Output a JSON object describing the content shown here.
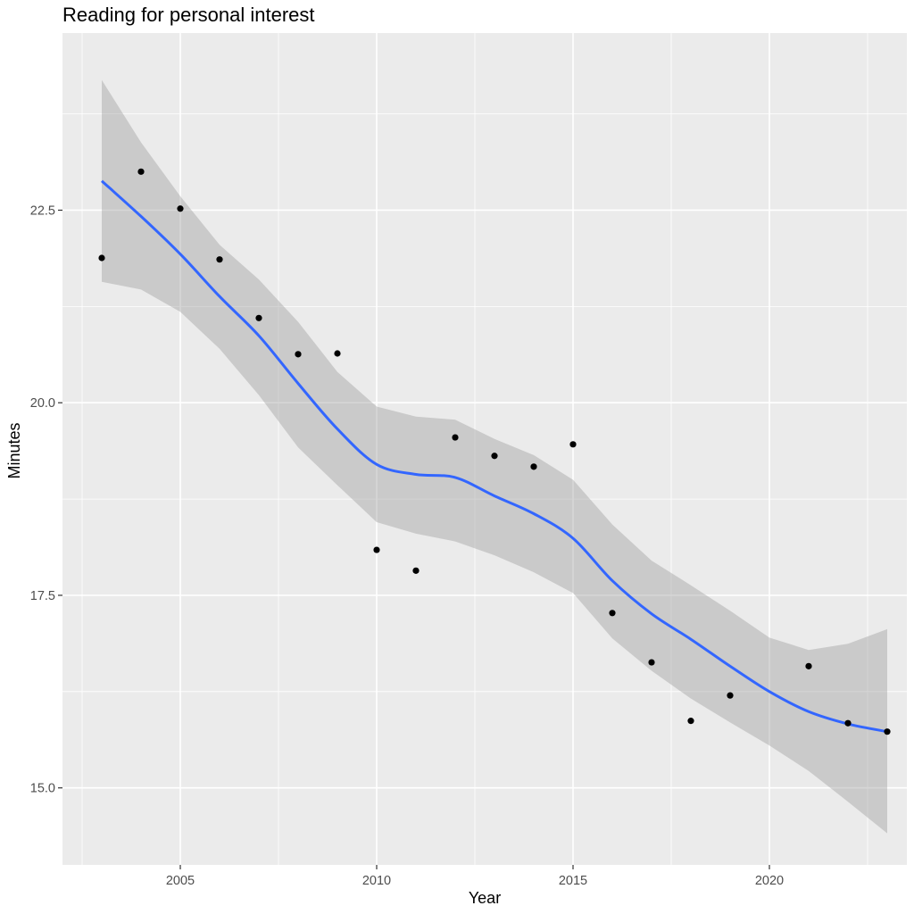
{
  "chart_data": {
    "type": "scatter",
    "title": "Reading for personal interest",
    "xlabel": "Year",
    "ylabel": "Minutes",
    "xlim": [
      2002.0,
      2023.5
    ],
    "ylim": [
      14.0,
      24.8
    ],
    "x_ticks": [
      2005,
      2010,
      2015,
      2020
    ],
    "y_ticks": [
      15.0,
      17.5,
      20.0,
      22.5
    ],
    "x_tick_labels": [
      "2005",
      "2010",
      "2015",
      "2020"
    ],
    "y_tick_labels": [
      "15.0",
      "17.5",
      "20.0",
      "22.5"
    ],
    "grid": true,
    "legend": "none",
    "colors": {
      "panel": "#ebebeb",
      "grid": "#ffffff",
      "points": "#000000",
      "smooth_line": "#3366ff",
      "ribbon": "#999999"
    },
    "points": {
      "x": [
        2003,
        2004,
        2005,
        2006,
        2007,
        2008,
        2009,
        2010,
        2011,
        2012,
        2013,
        2014,
        2015,
        2016,
        2017,
        2018,
        2019,
        2021,
        2022,
        2023
      ],
      "y": [
        21.88,
        23.0,
        22.52,
        21.86,
        21.1,
        20.63,
        20.64,
        18.09,
        17.82,
        19.55,
        19.31,
        19.17,
        19.46,
        17.27,
        16.63,
        15.87,
        16.2,
        16.58,
        15.84,
        15.73
      ]
    },
    "smooth": {
      "x": [
        2003,
        2004,
        2005,
        2006,
        2007,
        2008,
        2009,
        2010,
        2011,
        2012,
        2013,
        2014,
        2015,
        2016,
        2017,
        2018,
        2019,
        2020,
        2021,
        2022,
        2023
      ],
      "y": [
        22.88,
        22.42,
        21.93,
        21.38,
        20.87,
        20.25,
        19.66,
        19.2,
        19.07,
        19.03,
        18.79,
        18.56,
        18.24,
        17.69,
        17.26,
        16.93,
        16.58,
        16.25,
        15.99,
        15.83,
        15.73
      ],
      "lower": [
        21.57,
        21.47,
        21.18,
        20.7,
        20.1,
        19.42,
        18.93,
        18.45,
        18.3,
        18.2,
        18.02,
        17.8,
        17.53,
        16.94,
        16.52,
        16.16,
        15.85,
        15.55,
        15.22,
        14.82,
        14.41
      ],
      "upper": [
        24.19,
        23.38,
        22.68,
        22.05,
        21.6,
        21.05,
        20.4,
        19.95,
        19.82,
        19.78,
        19.53,
        19.32,
        19.0,
        18.42,
        17.95,
        17.63,
        17.3,
        16.95,
        16.79,
        16.87,
        17.06
      ]
    }
  }
}
